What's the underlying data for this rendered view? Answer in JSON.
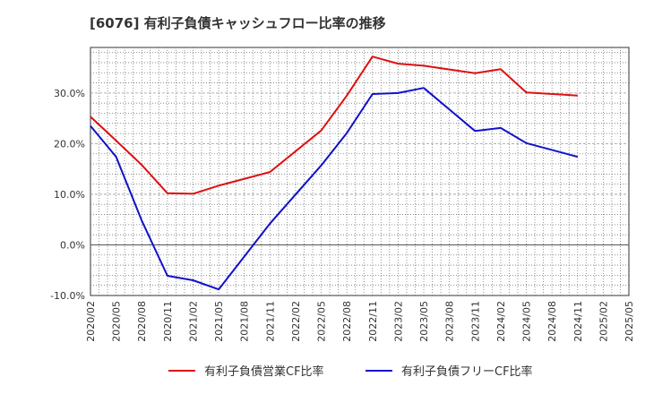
{
  "chart_data": {
    "type": "line",
    "title": "[6076]  有利子負債キャッシュフロー比率の推移",
    "xlabel": "",
    "ylabel": "",
    "ylim": [
      -10,
      39
    ],
    "yticks": [
      -10,
      0,
      10,
      20,
      30
    ],
    "ytick_labels": [
      "-10.0%",
      "0.0%",
      "10.0%",
      "20.0%",
      "30.0%"
    ],
    "x_tick_labels": [
      "2020/02",
      "2020/05",
      "2020/08",
      "2020/11",
      "2021/02",
      "2021/05",
      "2021/08",
      "2021/11",
      "2022/02",
      "2022/05",
      "2022/08",
      "2022/11",
      "2023/02",
      "2023/05",
      "2023/08",
      "2023/11",
      "2024/02",
      "2024/05",
      "2024/08",
      "2024/11",
      "2025/02",
      "2025/05"
    ],
    "grid": true,
    "legend_position": "bottom",
    "series": [
      {
        "name": "有利子負債営業CF比率",
        "color": "#dd1111",
        "x": [
          "2020/02",
          "2020/05",
          "2020/08",
          "2020/11",
          "2021/02",
          "2021/05",
          "2021/11",
          "2022/05",
          "2022/08",
          "2022/11",
          "2023/02",
          "2023/05",
          "2023/11",
          "2024/02",
          "2024/05",
          "2024/11"
        ],
        "values": [
          25.3,
          20.6,
          15.8,
          10.2,
          10.1,
          11.7,
          14.4,
          22.6,
          29.5,
          37.2,
          35.8,
          35.4,
          33.9,
          34.7,
          30.1,
          29.5
        ]
      },
      {
        "name": "有利子負債フリーCF比率",
        "color": "#1111cc",
        "x": [
          "2020/02",
          "2020/05",
          "2020/08",
          "2020/11",
          "2021/02",
          "2021/05",
          "2021/11",
          "2022/05",
          "2022/08",
          "2022/11",
          "2023/02",
          "2023/05",
          "2023/11",
          "2024/02",
          "2024/05",
          "2024/11"
        ],
        "values": [
          23.5,
          17.4,
          4.8,
          -6.1,
          -7.0,
          -8.8,
          4.2,
          15.7,
          22.1,
          29.8,
          30.0,
          31.0,
          22.5,
          23.1,
          20.1,
          17.4
        ]
      }
    ]
  }
}
